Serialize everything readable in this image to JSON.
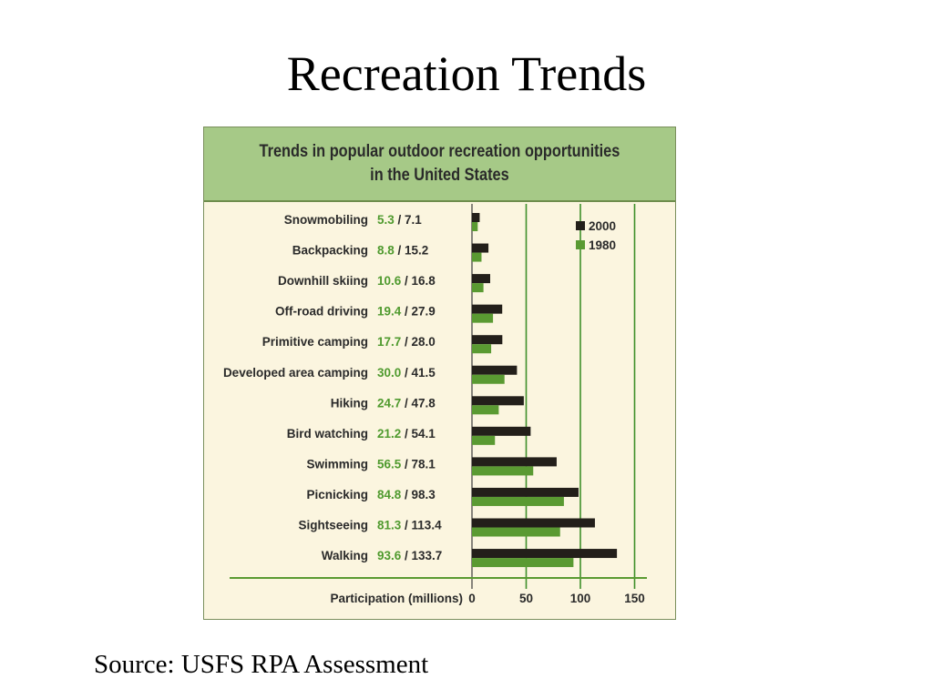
{
  "slide": {
    "title": "Recreation Trends",
    "source": "Source: USFS RPA Assessment"
  },
  "chart_data": {
    "type": "bar",
    "orientation": "horizontal",
    "title_lines": [
      "Trends in popular outdoor recreation opportunities",
      "in the United States"
    ],
    "xlabel": "Participation (millions)",
    "xticks": [
      0,
      50,
      100,
      150
    ],
    "xlim": [
      0,
      150
    ],
    "grid": true,
    "legend": "top-right",
    "categories": [
      "Snowmobiling",
      "Backpacking",
      "Downhill skiing",
      "Off-road driving",
      "Primitive camping",
      "Developed area camping",
      "Hiking",
      "Bird watching",
      "Swimming",
      "Picnicking",
      "Sightseeing",
      "Walking"
    ],
    "series": [
      {
        "name": "1980",
        "color": "#5a9a32",
        "values": [
          5.3,
          8.8,
          10.6,
          19.4,
          17.7,
          30.0,
          24.7,
          21.2,
          56.5,
          84.8,
          81.3,
          93.6
        ]
      },
      {
        "name": "2000",
        "color": "#231f1a",
        "values": [
          7.1,
          15.2,
          16.8,
          27.9,
          28.0,
          41.5,
          47.8,
          54.1,
          78.1,
          98.3,
          113.4,
          133.7
        ]
      }
    ],
    "value_labels": [
      {
        "v1980": "5.3",
        "v2000": "7.1"
      },
      {
        "v1980": "8.8",
        "v2000": "15.2"
      },
      {
        "v1980": "10.6",
        "v2000": "16.8"
      },
      {
        "v1980": "19.4",
        "v2000": "27.9"
      },
      {
        "v1980": "17.7",
        "v2000": "28.0"
      },
      {
        "v1980": "30.0",
        "v2000": "41.5"
      },
      {
        "v1980": "24.7",
        "v2000": "47.8"
      },
      {
        "v1980": "21.2",
        "v2000": "54.1"
      },
      {
        "v1980": "56.5",
        "v2000": "78.1"
      },
      {
        "v1980": "84.8",
        "v2000": "98.3"
      },
      {
        "v1980": "81.3",
        "v2000": "113.4"
      },
      {
        "v1980": "93.6",
        "v2000": "133.7"
      }
    ],
    "label_separator": " / ",
    "colors": {
      "header": "#a6c987",
      "panel": "#fbf5df",
      "gridline": "#3f8f2a",
      "axis": "#5a9a32",
      "label_1980": "#4f9a2e",
      "text": "#2a2a2a"
    }
  }
}
